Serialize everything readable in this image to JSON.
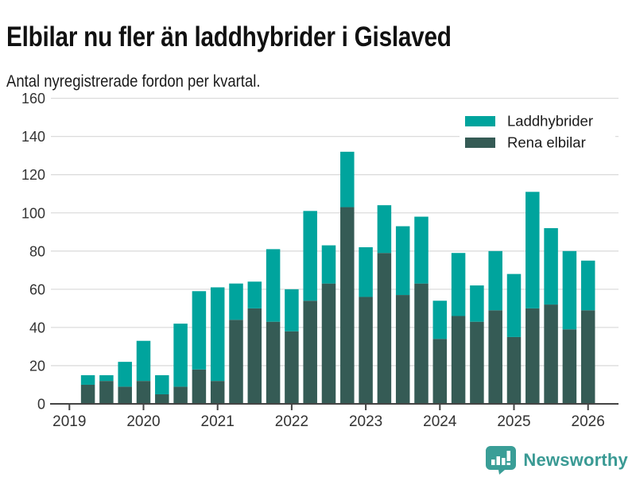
{
  "header": {
    "title": "Elbilar nu fler än laddhybrider i Gislaved",
    "subtitle": "Antal nyregistrerade fordon per kvartal."
  },
  "chart_data": {
    "type": "bar",
    "stacked": true,
    "title": "Elbilar nu fler än laddhybrider i Gislaved",
    "subtitle": "Antal nyregistrerade fordon per kvartal.",
    "xlabel": "",
    "ylabel": "",
    "ylim": [
      0,
      160
    ],
    "y_ticks": [
      0,
      20,
      40,
      60,
      80,
      100,
      120,
      140,
      160
    ],
    "x_tick_labels": [
      "2019",
      "2020",
      "2021",
      "2022",
      "2023",
      "2024",
      "2025",
      "2026"
    ],
    "grid": "horizontal",
    "legend_position": "top-right",
    "categories": [
      "2019 Q2",
      "2019 Q3",
      "2019 Q4",
      "2020 Q1",
      "2020 Q2",
      "2020 Q3",
      "2020 Q4",
      "2021 Q1",
      "2021 Q2",
      "2021 Q3",
      "2021 Q4",
      "2022 Q1",
      "2022 Q2",
      "2022 Q3",
      "2022 Q4",
      "2023 Q1",
      "2023 Q2",
      "2023 Q3",
      "2023 Q4",
      "2024 Q1",
      "2024 Q2",
      "2024 Q3",
      "2024 Q4",
      "2025 Q1",
      "2025 Q2",
      "2025 Q3",
      "2025 Q4",
      "2026 Q1"
    ],
    "series": [
      {
        "name": "Laddhybrider",
        "color": "#00a49d",
        "values": [
          5,
          3,
          13,
          21,
          10,
          33,
          41,
          49,
          19,
          14,
          38,
          22,
          47,
          20,
          29,
          26,
          25,
          36,
          35,
          20,
          33,
          19,
          31,
          33,
          61,
          40,
          41,
          26
        ]
      },
      {
        "name": "Rena elbilar",
        "color": "#355b55",
        "values": [
          10,
          12,
          9,
          12,
          5,
          9,
          18,
          12,
          44,
          50,
          43,
          38,
          54,
          63,
          103,
          56,
          79,
          57,
          63,
          34,
          46,
          43,
          49,
          35,
          50,
          52,
          39,
          49
        ]
      }
    ],
    "stack_totals": [
      15,
      15,
      22,
      33,
      15,
      42,
      59,
      61,
      63,
      64,
      81,
      60,
      101,
      83,
      132,
      82,
      104,
      93,
      98,
      54,
      79,
      62,
      80,
      68,
      111,
      92,
      80,
      75
    ],
    "stack_order_bottom_first": [
      "Rena elbilar",
      "Laddhybrider"
    ]
  },
  "footer": {
    "brand": "Newsworthy",
    "logo_icon": "newsworthy-speech-bubble-bar-chart-icon",
    "brand_color": "#3a9a94"
  },
  "colors": {
    "accent_teal": "#00a49d",
    "dark_slate": "#355b55",
    "gridline": "#dcdcdc",
    "axis": "#444444",
    "tick_label": "#333333",
    "title_text": "#111111"
  }
}
